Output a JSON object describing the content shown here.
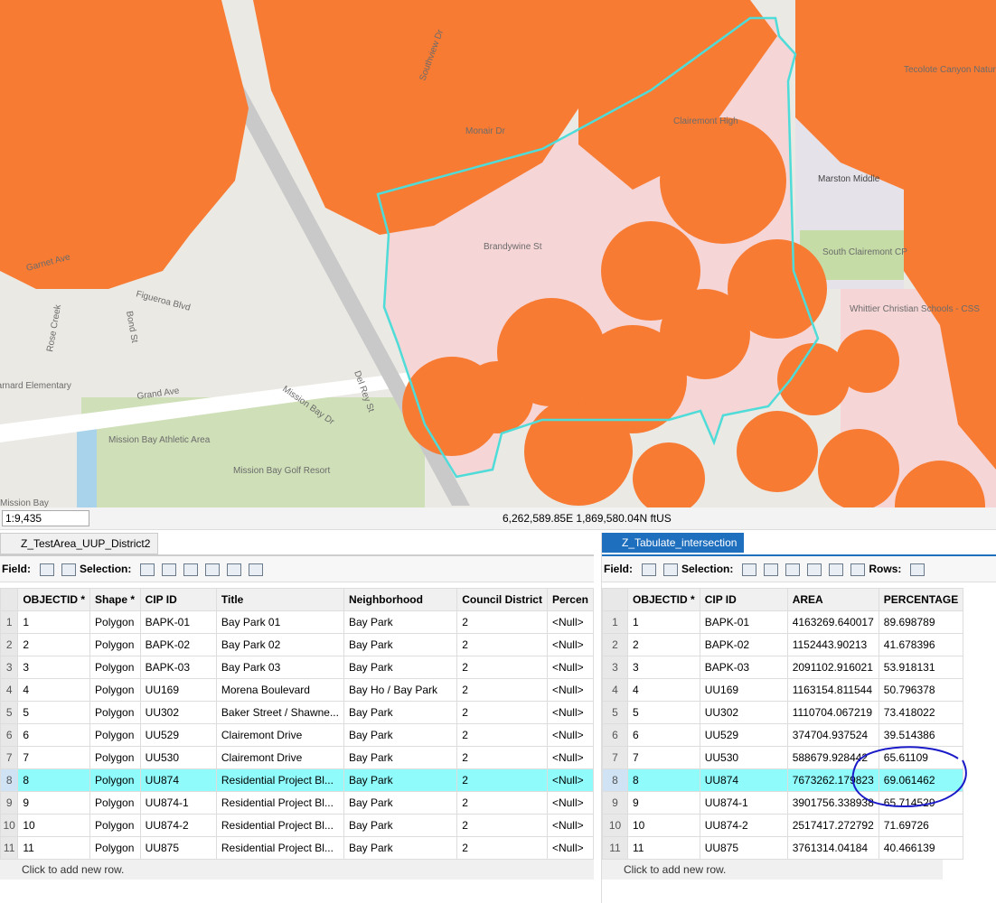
{
  "map": {
    "labels": [
      "Southview Dr",
      "Monair Dr",
      "Brandywine St",
      "Marston Middle",
      "South Clairemont CP",
      "Whittier Christian Schools - CSS",
      "Tecolote Canyon Natural OS Park",
      "Clairemont High",
      "Rose Creek",
      "Garnet Ave",
      "Figueroa Blvd",
      "Bond St",
      "Grand Ave",
      "Mission Bay Dr",
      "Del Rey St",
      "Mission Bay Athletic Area",
      "Mission Bay Golf Resort",
      "Mission Bay",
      "Barnard Elementary"
    ]
  },
  "status": {
    "scale": "1:9,435",
    "coordinates": "6,262,589.85E 1,869,580.04N ftUS"
  },
  "left_table": {
    "tab": "Z_TestArea_UUP_District2",
    "field": "Field:",
    "selection": "Selection:",
    "footer": "Click to add new row.",
    "columns": [
      "OBJECTID *",
      "Shape *",
      "CIP ID",
      "Title",
      "Neighborhood",
      "Council District",
      "Percen"
    ],
    "row_numbers": [
      "1",
      "2",
      "3",
      "4",
      "5",
      "6",
      "7",
      "8",
      "9",
      "10",
      "11"
    ],
    "rows": [
      [
        "1",
        "Polygon",
        "BAPK-01",
        "Bay Park 01",
        "Bay Park",
        "2",
        "<Null>"
      ],
      [
        "2",
        "Polygon",
        "BAPK-02",
        "Bay Park 02",
        "Bay Park",
        "2",
        "<Null>"
      ],
      [
        "3",
        "Polygon",
        "BAPK-03",
        "Bay Park 03",
        "Bay Park",
        "2",
        "<Null>"
      ],
      [
        "4",
        "Polygon",
        "UU169",
        "Morena Boulevard",
        "Bay Ho / Bay Park",
        "2",
        "<Null>"
      ],
      [
        "5",
        "Polygon",
        "UU302",
        "Baker Street / Shawne...",
        "Bay Park",
        "2",
        "<Null>"
      ],
      [
        "6",
        "Polygon",
        "UU529",
        "Clairemont Drive",
        "Bay Park",
        "2",
        "<Null>"
      ],
      [
        "7",
        "Polygon",
        "UU530",
        "Clairemont Drive",
        "Bay Park",
        "2",
        "<Null>"
      ],
      [
        "8",
        "Polygon",
        "UU874",
        "Residential Project Bl...",
        "Bay Park",
        "2",
        "<Null>"
      ],
      [
        "9",
        "Polygon",
        "UU874-1",
        "Residential Project Bl...",
        "Bay Park",
        "2",
        "<Null>"
      ],
      [
        "10",
        "Polygon",
        "UU874-2",
        "Residential Project Bl...",
        "Bay Park",
        "2",
        "<Null>"
      ],
      [
        "11",
        "Polygon",
        "UU875",
        "Residential Project Bl...",
        "Bay Park",
        "2",
        "<Null>"
      ]
    ]
  },
  "right_table": {
    "tab": "Z_Tabulate_intersection",
    "field": "Field:",
    "selection": "Selection:",
    "rows_label": "Rows:",
    "footer": "Click to add new row.",
    "columns": [
      "OBJECTID *",
      "CIP ID",
      "AREA",
      "PERCENTAGE"
    ],
    "row_numbers": [
      "1",
      "2",
      "3",
      "4",
      "5",
      "6",
      "7",
      "8",
      "9",
      "10",
      "11"
    ],
    "rows": [
      [
        "1",
        "BAPK-01",
        "4163269.640017",
        "89.698789"
      ],
      [
        "2",
        "BAPK-02",
        "1152443.90213",
        "41.678396"
      ],
      [
        "3",
        "BAPK-03",
        "2091102.916021",
        "53.918131"
      ],
      [
        "4",
        "UU169",
        "1163154.811544",
        "50.796378"
      ],
      [
        "5",
        "UU302",
        "1110704.067219",
        "73.418022"
      ],
      [
        "6",
        "UU529",
        "374704.937524",
        "39.514386"
      ],
      [
        "7",
        "UU530",
        "588679.928442",
        "65.61109"
      ],
      [
        "8",
        "UU874",
        "7673262.179823",
        "69.061462"
      ],
      [
        "9",
        "UU874-1",
        "3901756.338938",
        "65.714529"
      ],
      [
        "10",
        "UU874-2",
        "2517417.272792",
        "71.69726"
      ],
      [
        "11",
        "UU875",
        "3761314.04184",
        "40.466139"
      ]
    ]
  }
}
